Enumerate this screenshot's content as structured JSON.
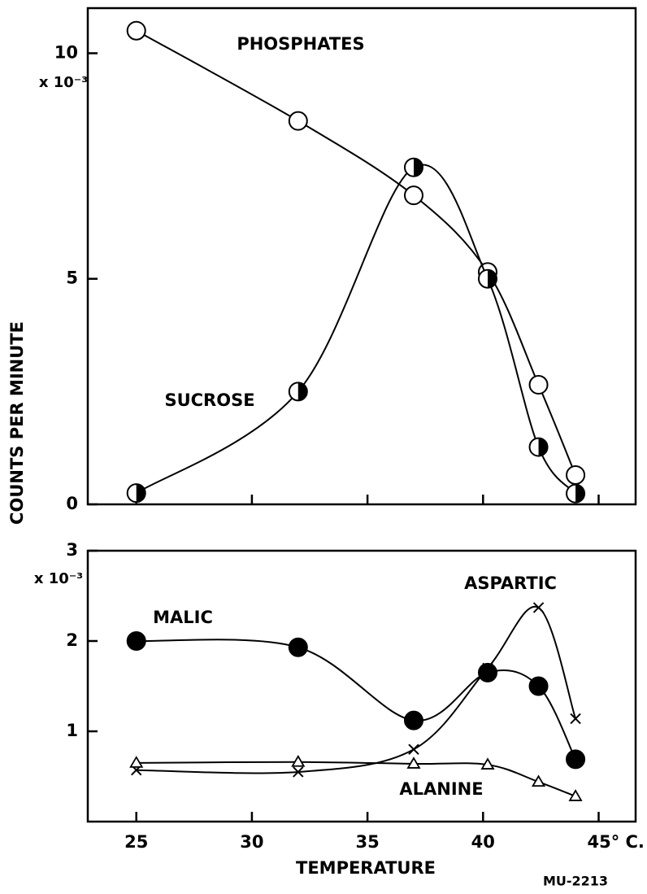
{
  "ylabel": "COUNTS PER MINUTE",
  "figure_id": "MU-2213",
  "chart_data": [
    {
      "type": "line",
      "y_multiplier": "x 10⁻³",
      "x": [
        25,
        32,
        37,
        40.2,
        42.4,
        44
      ],
      "series": [
        {
          "name": "PHOSPHATES",
          "color": "#000000",
          "marker": "open-circle",
          "values": [
            10.5,
            8.5,
            6.85,
            5.15,
            2.65,
            0.65
          ]
        },
        {
          "name": "SUCROSE",
          "color": "#000000",
          "marker": "half-circle",
          "values": [
            0.25,
            2.5,
            7.47,
            5.0,
            1.27,
            0.24
          ]
        }
      ],
      "xlim": [
        22.9,
        46.6
      ],
      "xticks": [
        25,
        30,
        35,
        40,
        45
      ],
      "show_xtick_labels": false,
      "ylim": [
        0,
        11
      ],
      "yticks": [
        0,
        5,
        10
      ]
    },
    {
      "type": "line",
      "y_multiplier": "x 10⁻³",
      "xlabel": "TEMPERATURE",
      "x": [
        25,
        32,
        37,
        40.2,
        42.4,
        44
      ],
      "series": [
        {
          "name": "MALIC",
          "color": "#000000",
          "marker": "filled-circle",
          "values": [
            2.0,
            1.93,
            1.12,
            1.65,
            1.5,
            0.69
          ]
        },
        {
          "name": "ASPARTIC",
          "color": "#000000",
          "marker": "cross",
          "values": [
            0.57,
            0.55,
            0.8,
            1.7,
            2.37,
            1.14
          ]
        },
        {
          "name": "ALANINE",
          "color": "#000000",
          "marker": "triangle",
          "values": [
            0.65,
            0.66,
            0.64,
            0.63,
            0.44,
            0.28
          ]
        }
      ],
      "xlim": [
        22.9,
        46.6
      ],
      "xticks": [
        25,
        30,
        35,
        40,
        {
          "value": 45,
          "label": "45° C."
        }
      ],
      "show_xtick_labels": true,
      "ylim": [
        0,
        3
      ],
      "yticks": [
        1,
        2,
        3
      ]
    }
  ]
}
